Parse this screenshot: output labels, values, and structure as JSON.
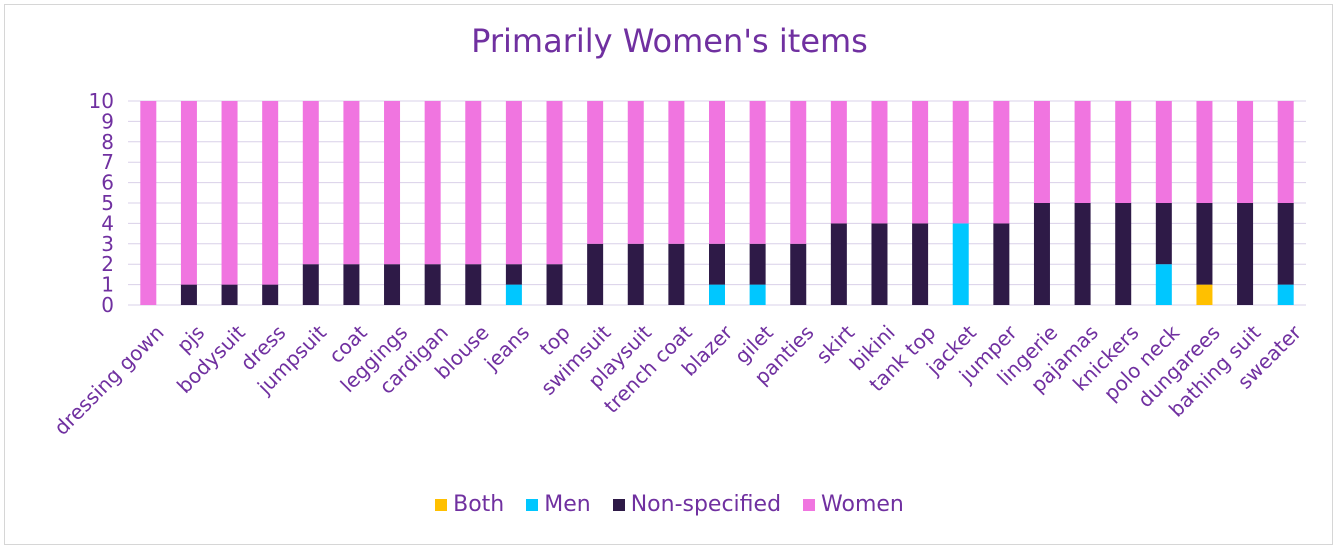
{
  "chart_data": {
    "type": "bar",
    "stacked": true,
    "title": "Primarily Women's items",
    "xlabel": "",
    "ylabel": "",
    "ylim": [
      0,
      10
    ],
    "yticks": [
      "0",
      "1",
      "2",
      "3",
      "4",
      "5",
      "6",
      "7",
      "8",
      "9",
      "10"
    ],
    "grid": true,
    "legend_position": "bottom",
    "categories": [
      "dressing gown",
      "pjs",
      "bodysuit",
      "dress",
      "jumpsuit",
      "coat",
      "leggings",
      "cardigan",
      "blouse",
      "jeans",
      "top",
      "swimsuit",
      "playsuit",
      "trench coat",
      "blazer",
      "gilet",
      "panties",
      "skirt",
      "bikini",
      "tank top",
      "jacket",
      "jumper",
      "lingerie",
      "pajamas",
      "knickers",
      "polo neck",
      "dungarees",
      "bathing suit",
      "sweater"
    ],
    "series": [
      {
        "name": "Both",
        "color": "#ffc000",
        "values": [
          0,
          0,
          0,
          0,
          0,
          0,
          0,
          0,
          0,
          0,
          0,
          0,
          0,
          0,
          0,
          0,
          0,
          0,
          0,
          0,
          0,
          0,
          0,
          0,
          0,
          0,
          1,
          0,
          0
        ]
      },
      {
        "name": "Men",
        "color": "#00c7ff",
        "values": [
          0,
          0,
          0,
          0,
          0,
          0,
          0,
          0,
          0,
          1,
          0,
          0,
          0,
          0,
          1,
          1,
          0,
          0,
          0,
          0,
          4,
          0,
          0,
          0,
          0,
          2,
          0,
          0,
          1
        ]
      },
      {
        "name": "Non-specified",
        "color": "#2e1a47",
        "values": [
          0,
          1,
          1,
          1,
          2,
          2,
          2,
          2,
          2,
          1,
          2,
          3,
          3,
          3,
          2,
          2,
          3,
          4,
          4,
          4,
          0,
          4,
          5,
          5,
          5,
          3,
          4,
          5,
          4
        ]
      },
      {
        "name": "Women",
        "color": "#f075e0",
        "values": [
          10,
          9,
          9,
          9,
          8,
          8,
          8,
          8,
          8,
          8,
          8,
          7,
          7,
          7,
          7,
          7,
          7,
          6,
          6,
          6,
          6,
          6,
          5,
          5,
          5,
          5,
          5,
          5,
          5
        ]
      }
    ]
  }
}
